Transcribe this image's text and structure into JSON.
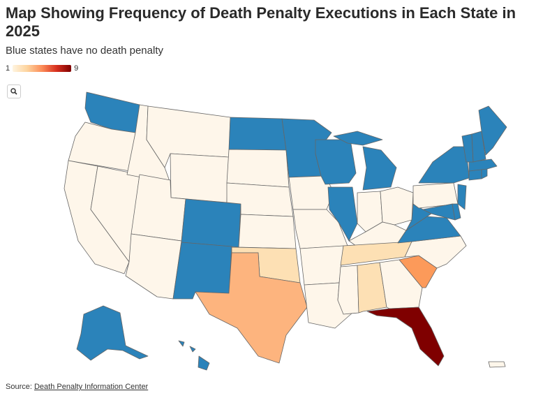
{
  "header": {
    "title": "Map Showing Frequency of Death Penalty Executions in Each State in 2025",
    "subtitle": "Blue states have no death penalty"
  },
  "legend": {
    "min_label": "1",
    "max_label": "9"
  },
  "zoom": {
    "icon": "search-icon"
  },
  "colors": {
    "none": "#2b83ba",
    "zero": "#fef6ea",
    "low": "#fde0b4",
    "mid": "#fdb47e",
    "high": "#fc9a5a",
    "max": "#7f0000"
  },
  "footer": {
    "source_prefix": "Source: ",
    "source_link": "Death Penalty Information Center"
  }
}
